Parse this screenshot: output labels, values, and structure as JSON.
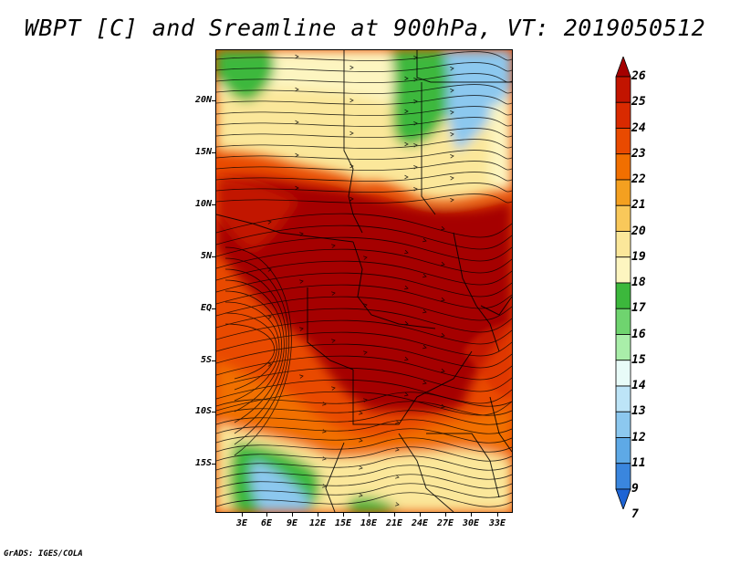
{
  "title": "WBPT [C] and Sreamline at 900hPa, VT: 2019050512",
  "credit": "GrADS: IGES/COLA",
  "lat_labels": [
    "20N",
    "15N",
    "10N",
    "5N",
    "EQ",
    "5S",
    "10S",
    "15S"
  ],
  "lon_labels": [
    "3E",
    "6E",
    "9E",
    "12E",
    "15E",
    "18E",
    "21E",
    "24E",
    "27E",
    "30E",
    "33E"
  ],
  "colorbar": {
    "labels": [
      "26",
      "25",
      "24",
      "23",
      "22",
      "21",
      "20",
      "19",
      "18",
      "17",
      "16",
      "15",
      "14",
      "13",
      "12",
      "11",
      "9",
      "7"
    ],
    "colors": [
      "#a50000",
      "#c21400",
      "#d92a00",
      "#e94a00",
      "#f16f00",
      "#f4a020",
      "#f9c85a",
      "#fbe79a",
      "#fdf5c0",
      "#3cb83c",
      "#6fd46f",
      "#a9eea9",
      "#e8fbf8",
      "#bde4f7",
      "#8cc8ef",
      "#5ea9e6",
      "#3a86de",
      "#1e64d4"
    ]
  },
  "colors": {
    "hot": "#a50000",
    "warm": "#e94a00",
    "mild": "#fbe79a",
    "green": "#3cb83c",
    "blue": "#8cc8ef",
    "streamline": "#000000"
  }
}
